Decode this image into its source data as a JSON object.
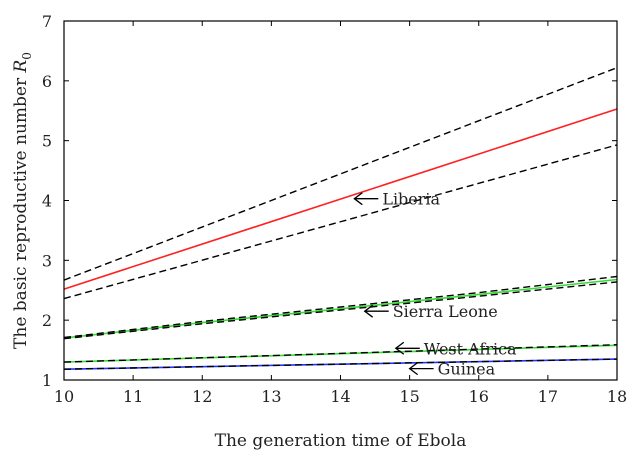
{
  "chart_data": {
    "type": "line",
    "xlabel": "The generation time of Ebola",
    "ylabel_text": "The basic reproductive number ",
    "ylabel_symbol": "R",
    "ylabel_subscript": "0",
    "xlim": [
      10,
      18
    ],
    "ylim": [
      1,
      7
    ],
    "xticks": [
      "10",
      "11",
      "12",
      "13",
      "14",
      "15",
      "16",
      "17",
      "18"
    ],
    "yticks": [
      "1",
      "2",
      "3",
      "4",
      "5",
      "6",
      "7"
    ],
    "grid": false,
    "series": [
      {
        "name": "Liberia",
        "x": [
          10,
          18
        ],
        "y": [
          2.52,
          5.53
        ],
        "color": "#ff2020",
        "style": "solid"
      },
      {
        "x": [
          10,
          18
        ],
        "y": [
          2.67,
          6.22
        ],
        "color": "#000000",
        "style": "dashed"
      },
      {
        "x": [
          10,
          18
        ],
        "y": [
          2.36,
          4.93
        ],
        "color": "#000000",
        "style": "dashed"
      },
      {
        "name": "Sierra Leone",
        "x": [
          10,
          12,
          14,
          16,
          18
        ],
        "y": [
          1.7,
          1.96,
          2.19,
          2.43,
          2.68
        ],
        "color": "#33dd33",
        "style": "solid"
      },
      {
        "x": [
          10,
          12,
          14,
          16,
          18
        ],
        "y": [
          1.71,
          1.98,
          2.22,
          2.46,
          2.73
        ],
        "color": "#000000",
        "style": "dashed"
      },
      {
        "x": [
          10,
          12,
          14,
          16,
          18
        ],
        "y": [
          1.69,
          1.94,
          2.17,
          2.4,
          2.64
        ],
        "color": "#000000",
        "style": "dashed"
      },
      {
        "name": "West Africa",
        "x": [
          10,
          18
        ],
        "y": [
          1.3,
          1.58
        ],
        "color": "#33dd33",
        "style": "solid"
      },
      {
        "x": [
          10,
          18
        ],
        "y": [
          1.3,
          1.59
        ],
        "color": "#000000",
        "style": "dashed"
      },
      {
        "name": "Guinea",
        "x": [
          10,
          18
        ],
        "y": [
          1.18,
          1.35
        ],
        "color": "#2233ff",
        "style": "solid"
      },
      {
        "x": [
          10,
          18
        ],
        "y": [
          1.18,
          1.35
        ],
        "color": "#000000",
        "style": "dashed"
      }
    ],
    "annotations": [
      {
        "text": "Liberia",
        "x": 14.2,
        "y": 4.03
      },
      {
        "text": "Sierra Leone",
        "x": 14.35,
        "y": 2.15
      },
      {
        "text": "West Africa",
        "x": 14.8,
        "y": 1.53
      },
      {
        "text": "Guinea",
        "x": 15.0,
        "y": 1.19
      }
    ]
  }
}
